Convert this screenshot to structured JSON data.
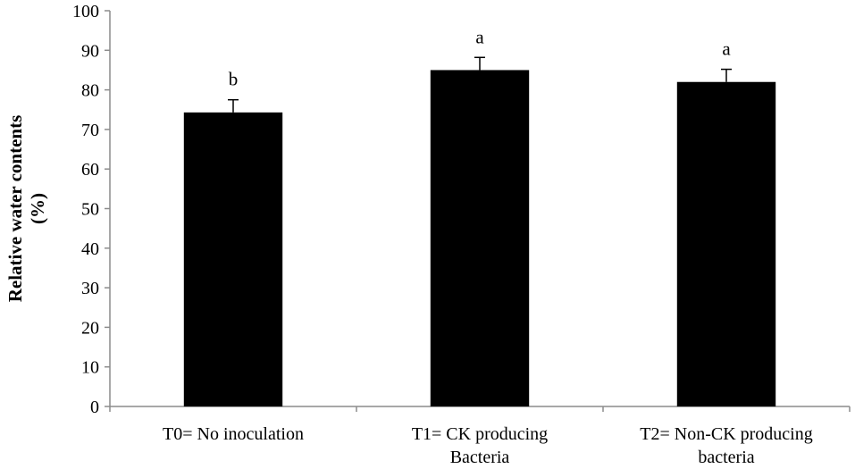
{
  "chart_data": {
    "type": "bar",
    "title": "",
    "xlabel": "",
    "ylabel": [
      "Relative water contents",
      "(%)"
    ],
    "ylim": [
      0,
      100
    ],
    "yticks": [
      0,
      10,
      20,
      30,
      40,
      50,
      60,
      70,
      80,
      90,
      100
    ],
    "categories": [
      [
        "T0= No inoculation"
      ],
      [
        "T1= CK producing",
        "Bacteria"
      ],
      [
        "T2= Non-CK producing",
        "bacteria"
      ]
    ],
    "values": [
      74.3,
      85.0,
      82.0
    ],
    "errors": [
      3.2,
      3.2,
      3.2
    ],
    "significance_letters": [
      "b",
      "a",
      "a"
    ],
    "bar_color": "#000000",
    "grid": false,
    "legend": "none"
  }
}
